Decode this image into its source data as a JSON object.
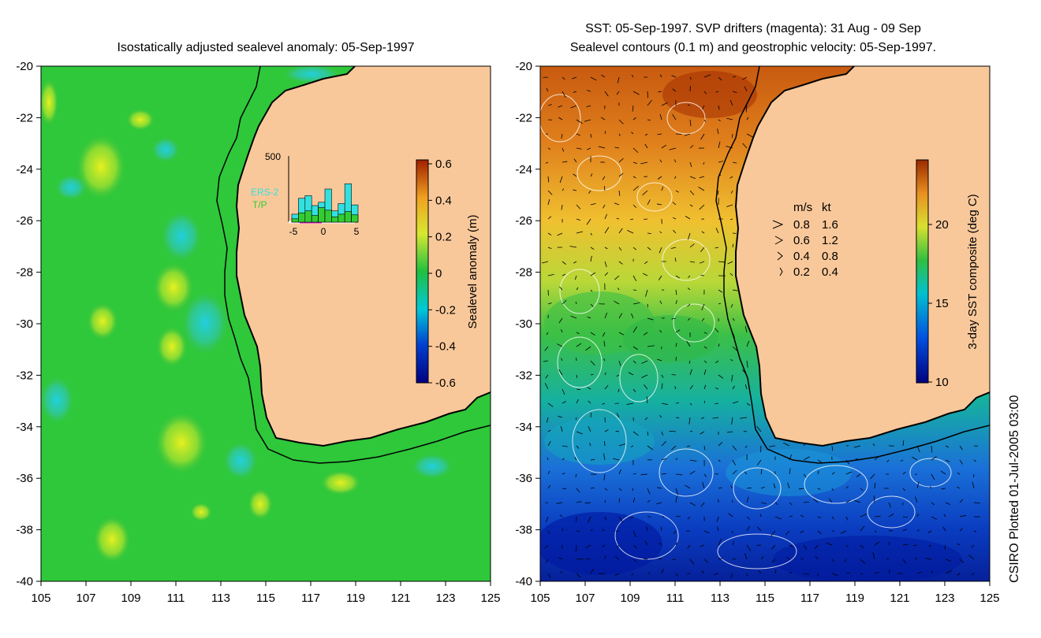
{
  "left_panel": {
    "title": "Isostatically adjusted sealevel anomaly: 05-Sep-1997",
    "lat_ticks": [
      "-20",
      "-22",
      "-24",
      "-26",
      "-28",
      "-30",
      "-32",
      "-34",
      "-36",
      "-38",
      "-40"
    ],
    "lon_ticks": [
      "105",
      "107",
      "109",
      "111",
      "113",
      "115",
      "117",
      "119",
      "121",
      "123",
      "125"
    ],
    "colorbar": {
      "label": "Sealevel anomaly (m)",
      "ticks": [
        "0.6",
        "0.4",
        "0.2",
        "0",
        "-0.2",
        "-0.4",
        "-0.6"
      ]
    },
    "histogram": {
      "ymax_label": "500",
      "x_labels": [
        "-5",
        "0",
        "5"
      ],
      "legend": [
        {
          "label": "ERS-2",
          "color": "#33e0e0"
        },
        {
          "label": "T/P",
          "color": "#33cc33"
        }
      ],
      "bars": [
        {
          "day": -5,
          "ers2": 0.12,
          "tp": 0.05
        },
        {
          "day": -4,
          "ers2": 0.36,
          "tp": 0.14
        },
        {
          "day": -3,
          "ers2": 0.4,
          "tp": 0.17
        },
        {
          "day": -2,
          "ers2": 0.25,
          "tp": 0.1
        },
        {
          "day": -1,
          "ers2": 0.3,
          "tp": 0.22
        },
        {
          "day": 0,
          "ers2": 0.5,
          "tp": 0.18
        },
        {
          "day": 1,
          "ers2": 0.17,
          "tp": 0.08
        },
        {
          "day": 2,
          "ers2": 0.28,
          "tp": 0.12
        },
        {
          "day": 3,
          "ers2": 0.58,
          "tp": 0.16
        },
        {
          "day": 4,
          "ers2": 0.26,
          "tp": 0.11
        }
      ]
    }
  },
  "right_panel": {
    "title_line1": "SST: 05-Sep-1997. SVP drifters (magenta): 31 Aug - 09 Sep",
    "title_line2": "Sealevel contours (0.1 m) and geostrophic velocity: 05-Sep-1997.",
    "lat_ticks": [
      "-20",
      "-22",
      "-24",
      "-26",
      "-28",
      "-30",
      "-32",
      "-34",
      "-36",
      "-38",
      "-40"
    ],
    "lon_ticks": [
      "105",
      "107",
      "109",
      "111",
      "113",
      "115",
      "117",
      "119",
      "121",
      "123",
      "125"
    ],
    "colorbar": {
      "label": "3-day SST composite (deg C)",
      "ticks": [
        "20",
        "15",
        "10"
      ]
    },
    "velocity_legend": {
      "header_ms": "m/s",
      "header_kt": "kt",
      "rows": [
        {
          "ms": "0.8",
          "kt": "1.6"
        },
        {
          "ms": "0.6",
          "kt": "1.2"
        },
        {
          "ms": "0.4",
          "kt": "0.8"
        },
        {
          "ms": "0.2",
          "kt": "0.4"
        }
      ]
    }
  },
  "credit": "CSIRO Plotted 01-Jul-2005 03:00",
  "colors": {
    "land": "#f9c89a",
    "ocean_green": "#2ec83a",
    "coast": "#000000"
  }
}
